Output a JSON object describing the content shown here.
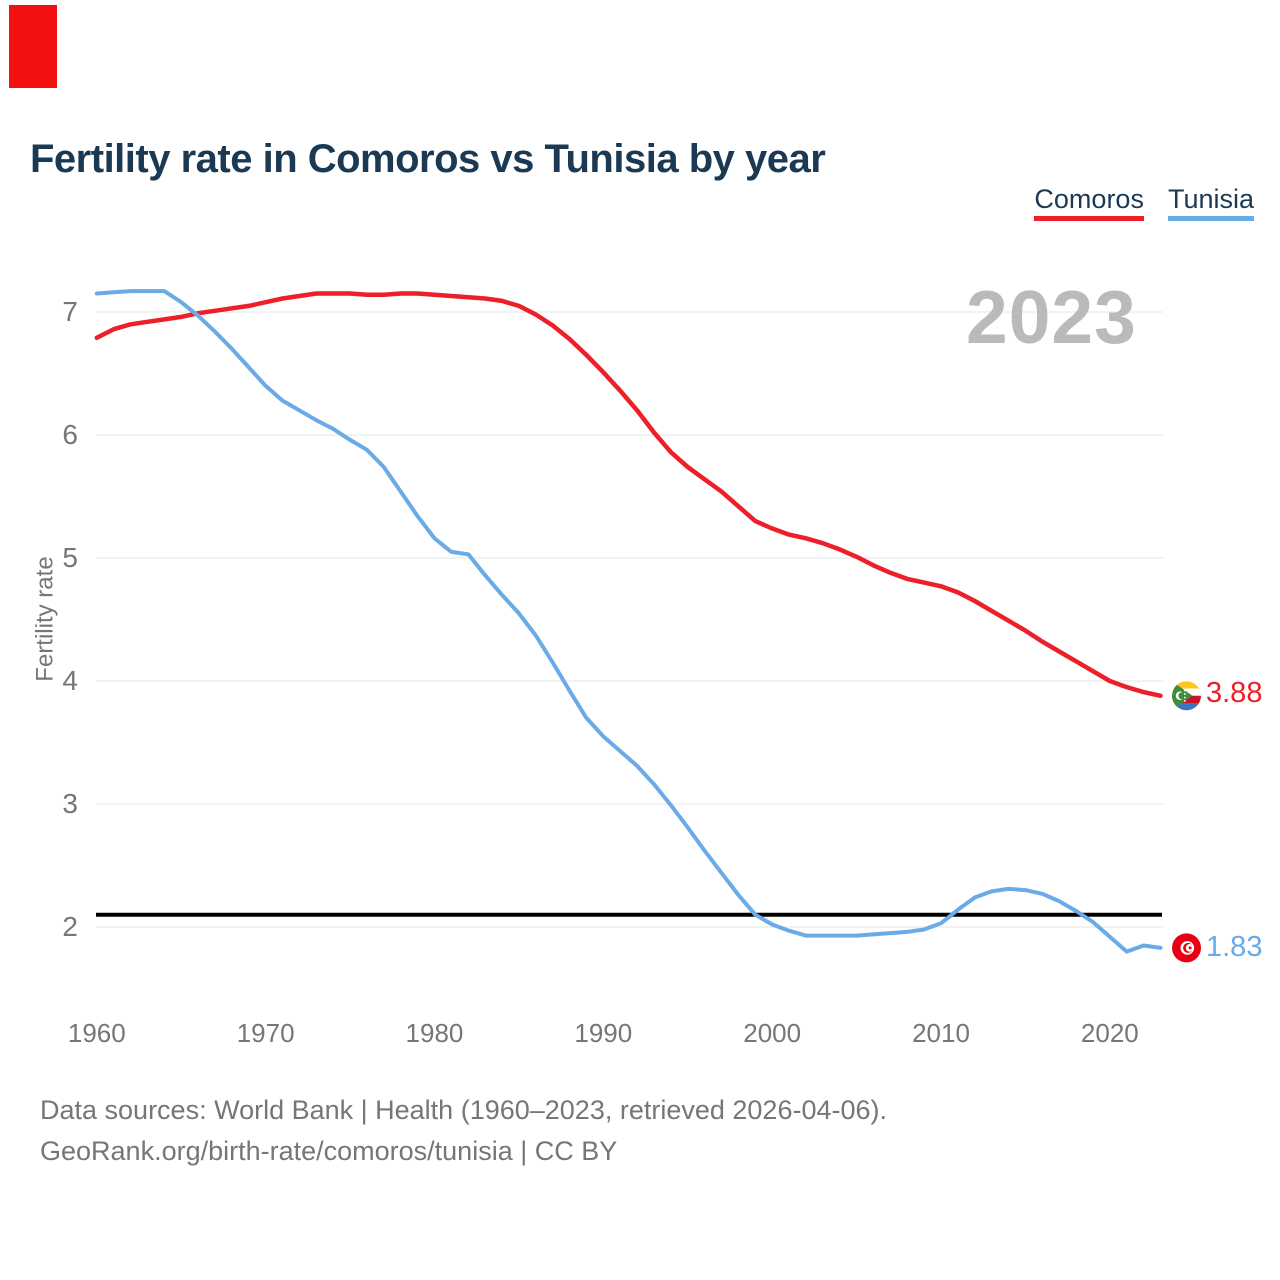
{
  "decoration": {
    "corner_marker_color": "#f31010"
  },
  "header": {
    "title": "Fertility rate in Comoros vs Tunisia by year"
  },
  "legend": {
    "position": "top-right",
    "items": [
      {
        "label": "Comoros",
        "color": "#ed1f28"
      },
      {
        "label": "Tunisia",
        "color": "#6aaae6"
      }
    ]
  },
  "watermark": "2023",
  "chart_data": {
    "type": "line",
    "title": "Fertility rate in Comoros vs Tunisia by year",
    "xlabel": "",
    "ylabel": "Fertility rate",
    "grid": "horizontal-only",
    "grid_color": "#ebebeb",
    "background": "#ffffff",
    "xlim": [
      1960,
      2023
    ],
    "ylim": [
      1.7,
      7.3
    ],
    "xticks": [
      1960,
      1970,
      1980,
      1990,
      2000,
      2010,
      2020
    ],
    "yticks": [
      2,
      3,
      4,
      5,
      6,
      7
    ],
    "tick_color": "#767676",
    "reference_line": {
      "value": 2.1,
      "color": "#000000",
      "meaning": "unlabeled black horizontal line"
    },
    "x": [
      1960,
      1961,
      1962,
      1963,
      1964,
      1965,
      1966,
      1967,
      1968,
      1969,
      1970,
      1971,
      1972,
      1973,
      1974,
      1975,
      1976,
      1977,
      1978,
      1979,
      1980,
      1981,
      1982,
      1983,
      1984,
      1985,
      1986,
      1987,
      1988,
      1989,
      1990,
      1991,
      1992,
      1993,
      1994,
      1995,
      1996,
      1997,
      1998,
      1999,
      2000,
      2001,
      2002,
      2003,
      2004,
      2005,
      2006,
      2007,
      2008,
      2009,
      2010,
      2011,
      2012,
      2013,
      2014,
      2015,
      2016,
      2017,
      2018,
      2019,
      2020,
      2021,
      2022,
      2023
    ],
    "series": [
      {
        "name": "Comoros",
        "color": "#ed1f28",
        "line_width": 4.5,
        "values": [
          6.79,
          6.86,
          6.9,
          6.92,
          6.94,
          6.96,
          6.99,
          7.01,
          7.03,
          7.05,
          7.08,
          7.11,
          7.13,
          7.15,
          7.15,
          7.15,
          7.14,
          7.14,
          7.15,
          7.15,
          7.14,
          7.13,
          7.12,
          7.11,
          7.09,
          7.05,
          6.98,
          6.89,
          6.78,
          6.65,
          6.51,
          6.36,
          6.2,
          6.02,
          5.86,
          5.74,
          5.64,
          5.54,
          5.42,
          5.3,
          5.24,
          5.19,
          5.16,
          5.12,
          5.07,
          5.01,
          4.94,
          4.88,
          4.83,
          4.8,
          4.77,
          4.72,
          4.65,
          4.57,
          4.49,
          4.41,
          4.32,
          4.24,
          4.16,
          4.08,
          4.0,
          3.95,
          3.91,
          3.88
        ]
      },
      {
        "name": "Tunisia",
        "color": "#6aaae6",
        "line_width": 4,
        "values": [
          7.15,
          7.16,
          7.17,
          7.17,
          7.17,
          7.08,
          6.97,
          6.84,
          6.7,
          6.55,
          6.4,
          6.28,
          6.2,
          6.12,
          6.05,
          5.96,
          5.88,
          5.74,
          5.54,
          5.34,
          5.16,
          5.05,
          5.03,
          4.86,
          4.7,
          4.55,
          4.37,
          4.15,
          3.92,
          3.7,
          3.55,
          3.43,
          3.31,
          3.16,
          2.99,
          2.81,
          2.62,
          2.44,
          2.26,
          2.1,
          2.02,
          1.97,
          1.93,
          1.93,
          1.93,
          1.93,
          1.94,
          1.95,
          1.96,
          1.98,
          2.03,
          2.14,
          2.24,
          2.29,
          2.31,
          2.3,
          2.27,
          2.21,
          2.13,
          2.04,
          1.92,
          1.8,
          1.85,
          1.83
        ]
      }
    ],
    "end_labels": [
      {
        "series": "Comoros",
        "value": 3.88,
        "value_label": "3.88",
        "flag": "comoros-flag",
        "color": "#ed1f28"
      },
      {
        "series": "Tunisia",
        "value": 1.83,
        "value_label": "1.83",
        "flag": "tunisia-flag",
        "color": "#6aaae6"
      }
    ]
  },
  "footer": {
    "line1": "Data sources: World Bank | Health (1960–2023, retrieved 2026-04-06).",
    "line2": "GeoRank.org/birth-rate/comoros/tunisia | CC BY"
  }
}
